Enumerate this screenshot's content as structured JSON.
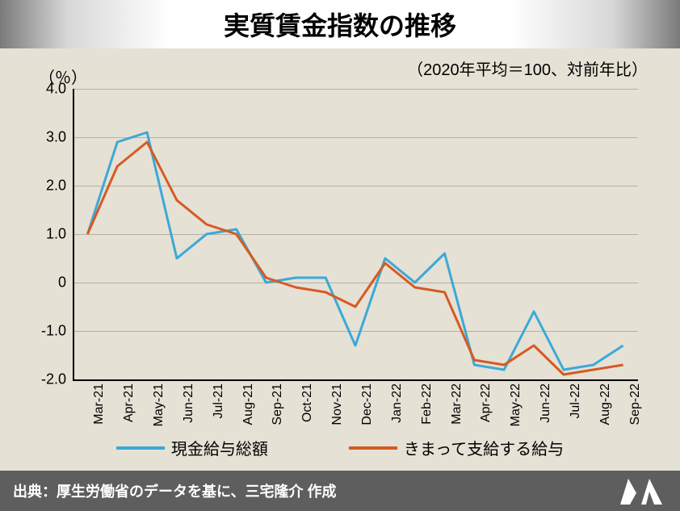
{
  "title": "実質賃金指数の推移",
  "subtitle": "（2020年平均＝100、対前年比）",
  "ylabel_unit": "（％）",
  "source": "出典：厚生労働省のデータを基に、三宅隆介 作成",
  "chart": {
    "type": "line",
    "background_color": "#e5e1d5",
    "grid_color": "#b5b0a4",
    "axis_color": "#000000",
    "title_fontsize": 32,
    "label_fontsize": 18,
    "tick_fontsize": 16,
    "ylim": [
      -2.0,
      4.0
    ],
    "ytick_step": 1.0,
    "yticks": [
      "4.0",
      "3.0",
      "2.0",
      "1.0",
      "0",
      "-1.0",
      "-2.0"
    ],
    "categories": [
      "Mar-21",
      "Apr-21",
      "May-21",
      "Jun-21",
      "Jul-21",
      "Aug-21",
      "Sep-21",
      "Oct-21",
      "Nov-21",
      "Dec-21",
      "Jan-22",
      "Feb-22",
      "Mar-22",
      "Apr-22",
      "May-22",
      "Jun-22",
      "Jul-22",
      "Aug-22",
      "Sep-22"
    ],
    "series": [
      {
        "name": "現金給与総額",
        "color": "#3ca9d6",
        "line_width": 3,
        "values": [
          1.0,
          2.9,
          3.1,
          0.5,
          1.0,
          1.1,
          0.0,
          0.1,
          0.1,
          -1.3,
          0.5,
          0.0,
          0.6,
          -1.7,
          -1.8,
          -0.6,
          -1.8,
          -1.7,
          -1.3
        ]
      },
      {
        "name": "きまって支給する給与",
        "color": "#d65a22",
        "line_width": 3,
        "values": [
          1.0,
          2.4,
          2.9,
          1.7,
          1.2,
          1.0,
          0.1,
          -0.1,
          -0.2,
          -0.5,
          0.4,
          -0.1,
          -0.2,
          -1.6,
          -1.7,
          -1.3,
          -1.9,
          -1.8,
          -1.7
        ]
      }
    ],
    "legend_position": "bottom",
    "line_style": "solid",
    "marker": "none"
  },
  "colors": {
    "page_bg": "#e5e1d5",
    "footer_bg": "#5e5e5e",
    "footer_text": "#ffffff",
    "logo_fill": "#ffffff"
  }
}
